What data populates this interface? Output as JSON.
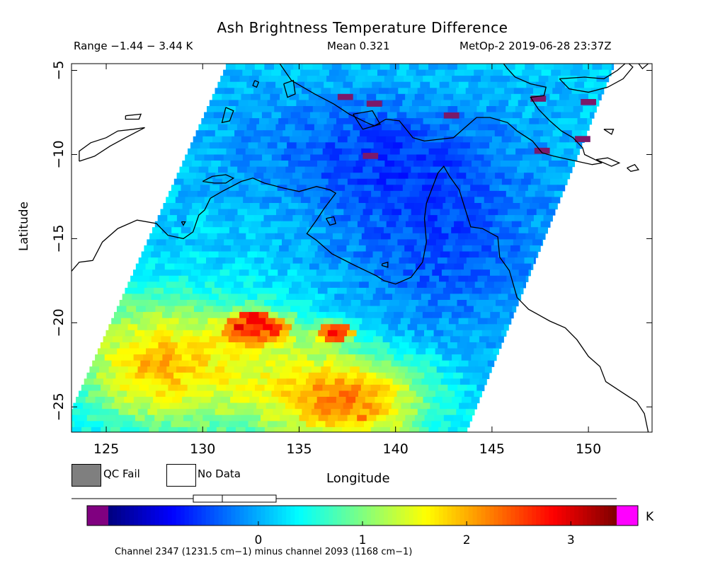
{
  "chart_data": {
    "type": "heatmap",
    "title": "Ash Brightness Temperature Difference",
    "header": {
      "range": "Range −1.44 − 3.44 K",
      "mean": "Mean 0.321",
      "satellite_time": "MetOp-2 2019-06-28 23:37Z"
    },
    "xlabel": "Longitude",
    "ylabel": "Latitude",
    "xlim": [
      123.2,
      153.3
    ],
    "ylim": [
      -26.5,
      -4.6
    ],
    "xticks": [
      125,
      130,
      135,
      140,
      145,
      150
    ],
    "yticks": [
      -5,
      -10,
      -15,
      -20,
      -25
    ],
    "ytick_labels": [
      "−5",
      "−10",
      "−15",
      "−20",
      "−25"
    ],
    "swath_lon_edges": {
      "top": [
        131.2,
        151.3
      ],
      "bottom": [
        122.6,
        143.6
      ]
    },
    "colorbar": {
      "min": -1.44,
      "max": 3.44,
      "ticks": [
        0,
        1,
        2,
        3
      ],
      "unit": "K",
      "under_color": "#800080",
      "over_color": "#ff00ff",
      "colors": [
        "#00007f",
        "#0000ff",
        "#0080ff",
        "#00ffff",
        "#80ff80",
        "#ffff00",
        "#ff8000",
        "#ff0000",
        "#7f0000"
      ]
    },
    "field": {
      "background_value": 0.15,
      "noise_amplitude": 0.45,
      "features": [
        {
          "lon": 142.0,
          "lat": -15.0,
          "value": -0.6,
          "spread_lon": 6.0,
          "spread_lat": 6.0
        },
        {
          "lon": 138.0,
          "lat": -9.5,
          "value": -0.5,
          "spread_lon": 7.0,
          "spread_lat": 3.5
        },
        {
          "lon": 130.0,
          "lat": -22.5,
          "value": 1.3,
          "spread_lon": 6.0,
          "spread_lat": 4.0
        },
        {
          "lon": 137.5,
          "lat": -24.5,
          "value": 1.9,
          "spread_lon": 4.0,
          "spread_lat": 2.8
        },
        {
          "lon": 132.5,
          "lat": -20.2,
          "value": 1.6,
          "spread_lon": 1.8,
          "spread_lat": 1.0
        },
        {
          "lon": 136.5,
          "lat": -20.4,
          "value": 1.6,
          "spread_lon": 0.8,
          "spread_lat": 0.7
        },
        {
          "lon": 126.5,
          "lat": -22.0,
          "value": 0.8,
          "spread_lon": 3.0,
          "spread_lat": 3.5
        }
      ],
      "hot_spots": [
        {
          "lon": 132.4,
          "lat": -19.6,
          "value": 3.3
        },
        {
          "lon": 133.3,
          "lat": -20.1,
          "value": 3.2
        },
        {
          "lon": 131.7,
          "lat": -20.1,
          "value": 3.1
        },
        {
          "lon": 136.6,
          "lat": -20.4,
          "value": 3.2
        },
        {
          "lon": 138.0,
          "lat": -25.4,
          "value": 2.6
        }
      ],
      "qc_fail_cells": [
        {
          "lon": 137.0,
          "lat": -6.4
        },
        {
          "lon": 138.5,
          "lat": -6.8
        },
        {
          "lon": 142.5,
          "lat": -7.5
        },
        {
          "lon": 147.0,
          "lat": -6.5
        },
        {
          "lon": 149.6,
          "lat": -6.7
        },
        {
          "lon": 149.3,
          "lat": -8.9
        },
        {
          "lon": 138.3,
          "lat": -9.9
        },
        {
          "lon": 147.2,
          "lat": -9.6
        }
      ]
    },
    "coastlines": [
      {
        "name": "australia-mainland",
        "points": [
          [
            118.0,
            -20.5
          ],
          [
            121.0,
            -19.5
          ],
          [
            122.2,
            -18.0
          ],
          [
            123.0,
            -17.2
          ],
          [
            123.6,
            -16.4
          ],
          [
            124.3,
            -16.3
          ],
          [
            124.8,
            -15.2
          ],
          [
            125.6,
            -14.4
          ],
          [
            126.6,
            -13.9
          ],
          [
            127.6,
            -14.1
          ],
          [
            128.2,
            -14.8
          ],
          [
            129.0,
            -15.0
          ],
          [
            129.5,
            -14.6
          ],
          [
            129.8,
            -13.6
          ],
          [
            130.1,
            -13.3
          ],
          [
            130.4,
            -12.6
          ],
          [
            131.0,
            -12.2
          ],
          [
            132.0,
            -11.6
          ],
          [
            132.6,
            -11.4
          ],
          [
            133.2,
            -11.7
          ],
          [
            134.2,
            -12.0
          ],
          [
            135.0,
            -12.2
          ],
          [
            135.9,
            -11.9
          ],
          [
            136.6,
            -12.1
          ],
          [
            136.9,
            -12.3
          ],
          [
            136.3,
            -13.2
          ],
          [
            135.9,
            -13.9
          ],
          [
            135.4,
            -14.7
          ],
          [
            135.9,
            -15.1
          ],
          [
            136.7,
            -15.9
          ],
          [
            137.9,
            -16.6
          ],
          [
            139.0,
            -17.2
          ],
          [
            139.4,
            -17.5
          ],
          [
            140.0,
            -17.7
          ],
          [
            140.8,
            -17.3
          ],
          [
            141.4,
            -16.4
          ],
          [
            141.6,
            -15.2
          ],
          [
            141.5,
            -13.8
          ],
          [
            141.6,
            -12.9
          ],
          [
            141.9,
            -12.0
          ],
          [
            142.2,
            -11.1
          ],
          [
            142.5,
            -10.7
          ],
          [
            142.8,
            -11.3
          ],
          [
            143.3,
            -12.1
          ],
          [
            143.6,
            -13.2
          ],
          [
            143.9,
            -14.3
          ],
          [
            144.5,
            -14.4
          ],
          [
            145.3,
            -14.9
          ],
          [
            145.4,
            -16.1
          ],
          [
            145.9,
            -16.9
          ],
          [
            146.3,
            -18.5
          ],
          [
            146.9,
            -19.2
          ],
          [
            148.0,
            -19.9
          ],
          [
            148.8,
            -20.3
          ],
          [
            149.4,
            -21.0
          ],
          [
            150.0,
            -22.0
          ],
          [
            150.6,
            -22.6
          ],
          [
            150.9,
            -23.5
          ],
          [
            151.7,
            -24.1
          ],
          [
            152.5,
            -24.7
          ],
          [
            152.9,
            -25.4
          ],
          [
            153.1,
            -26.5
          ]
        ]
      },
      {
        "name": "new-guinea-south",
        "points": [
          [
            131.0,
            -1.5
          ],
          [
            132.5,
            -3.0
          ],
          [
            133.6,
            -4.0
          ],
          [
            134.0,
            -4.6
          ],
          [
            134.6,
            -5.6
          ],
          [
            135.8,
            -6.4
          ],
          [
            136.8,
            -7.0
          ],
          [
            137.6,
            -7.6
          ],
          [
            138.5,
            -8.1
          ],
          [
            138.9,
            -8.3
          ],
          [
            139.5,
            -7.9
          ],
          [
            140.2,
            -8.0
          ],
          [
            140.9,
            -9.0
          ],
          [
            141.5,
            -9.2
          ],
          [
            142.2,
            -9.1
          ],
          [
            143.0,
            -9.0
          ],
          [
            143.6,
            -8.4
          ],
          [
            144.2,
            -7.8
          ],
          [
            144.9,
            -7.8
          ],
          [
            145.8,
            -8.1
          ],
          [
            146.3,
            -8.6
          ],
          [
            147.1,
            -9.2
          ],
          [
            147.6,
            -9.9
          ],
          [
            148.2,
            -10.1
          ],
          [
            149.0,
            -10.3
          ],
          [
            150.2,
            -10.6
          ],
          [
            150.7,
            -10.5
          ]
        ]
      },
      {
        "name": "new-guinea-north",
        "points": [
          [
            150.7,
            -10.5
          ],
          [
            149.8,
            -10.0
          ],
          [
            149.7,
            -9.6
          ],
          [
            149.2,
            -9.0
          ],
          [
            148.6,
            -8.6
          ],
          [
            148.0,
            -8.0
          ],
          [
            147.4,
            -7.3
          ],
          [
            147.0,
            -6.6
          ],
          [
            147.7,
            -6.5
          ],
          [
            147.8,
            -6.0
          ],
          [
            147.0,
            -5.8
          ],
          [
            146.2,
            -5.4
          ],
          [
            145.8,
            -4.9
          ],
          [
            145.2,
            -4.0
          ],
          [
            144.6,
            -3.7
          ],
          [
            143.8,
            -3.3
          ],
          [
            143.0,
            -3.1
          ],
          [
            142.0,
            -2.9
          ]
        ]
      },
      {
        "name": "timor",
        "points": [
          [
            123.6,
            -10.4
          ],
          [
            124.4,
            -10.1
          ],
          [
            125.2,
            -9.5
          ],
          [
            126.0,
            -9.0
          ],
          [
            127.0,
            -8.4
          ],
          [
            126.4,
            -8.5
          ],
          [
            125.6,
            -8.6
          ],
          [
            125.0,
            -9.0
          ],
          [
            124.2,
            -9.3
          ],
          [
            123.6,
            -9.8
          ],
          [
            123.6,
            -10.4
          ]
        ]
      },
      {
        "name": "melville-island",
        "points": [
          [
            130.0,
            -11.6
          ],
          [
            130.5,
            -11.3
          ],
          [
            131.2,
            -11.2
          ],
          [
            131.6,
            -11.4
          ],
          [
            131.2,
            -11.7
          ],
          [
            130.6,
            -11.7
          ],
          [
            130.0,
            -11.6
          ]
        ]
      },
      {
        "name": "groote-eylandt",
        "points": [
          [
            136.4,
            -13.8
          ],
          [
            136.8,
            -13.7
          ],
          [
            136.9,
            -14.1
          ],
          [
            136.6,
            -14.2
          ],
          [
            136.4,
            -13.8
          ]
        ]
      },
      {
        "name": "mornington-island",
        "points": [
          [
            139.3,
            -16.5
          ],
          [
            139.6,
            -16.4
          ],
          [
            139.6,
            -16.7
          ],
          [
            139.3,
            -16.6
          ],
          [
            139.3,
            -16.5
          ]
        ]
      },
      {
        "name": "tanimbar",
        "points": [
          [
            131.2,
            -7.2
          ],
          [
            131.6,
            -7.4
          ],
          [
            131.4,
            -8.0
          ],
          [
            131.0,
            -8.1
          ],
          [
            131.2,
            -7.2
          ]
        ]
      },
      {
        "name": "frederik-hendrik",
        "points": [
          [
            137.8,
            -7.6
          ],
          [
            138.8,
            -7.4
          ],
          [
            139.2,
            -8.2
          ],
          [
            138.3,
            -8.5
          ],
          [
            137.8,
            -7.6
          ]
        ]
      },
      {
        "name": "aru-islands",
        "points": [
          [
            134.2,
            -5.8
          ],
          [
            134.7,
            -5.6
          ],
          [
            134.8,
            -6.4
          ],
          [
            134.4,
            -6.6
          ],
          [
            134.2,
            -5.8
          ]
        ]
      },
      {
        "name": "kai-islands",
        "points": [
          [
            132.7,
            -5.6
          ],
          [
            132.9,
            -5.7
          ],
          [
            132.8,
            -6.0
          ],
          [
            132.6,
            -5.9
          ],
          [
            132.7,
            -5.6
          ]
        ]
      },
      {
        "name": "wetar",
        "points": [
          [
            126.0,
            -7.7
          ],
          [
            126.8,
            -7.6
          ],
          [
            126.7,
            -7.9
          ],
          [
            126.0,
            -7.9
          ],
          [
            126.0,
            -7.7
          ]
        ]
      },
      {
        "name": "louisiade",
        "points": [
          [
            150.4,
            -10.3
          ],
          [
            151.0,
            -10.2
          ],
          [
            151.6,
            -10.5
          ],
          [
            151.2,
            -10.7
          ],
          [
            150.4,
            -10.3
          ]
        ]
      },
      {
        "name": "trobriand",
        "points": [
          [
            150.8,
            -8.5
          ],
          [
            151.3,
            -8.5
          ],
          [
            151.2,
            -8.8
          ],
          [
            150.8,
            -8.5
          ]
        ]
      },
      {
        "name": "new-britain",
        "points": [
          [
            148.5,
            -5.5
          ],
          [
            149.8,
            -5.4
          ],
          [
            150.8,
            -5.5
          ],
          [
            151.5,
            -5.0
          ],
          [
            152.0,
            -4.5
          ],
          [
            152.3,
            -4.8
          ],
          [
            151.8,
            -5.5
          ],
          [
            151.0,
            -6.0
          ],
          [
            150.0,
            -6.3
          ],
          [
            149.0,
            -6.1
          ],
          [
            148.5,
            -5.5
          ]
        ]
      },
      {
        "name": "new-ireland",
        "points": [
          [
            150.8,
            -2.6
          ],
          [
            152.0,
            -3.4
          ],
          [
            152.7,
            -4.2
          ],
          [
            153.1,
            -4.6
          ],
          [
            152.8,
            -4.9
          ],
          [
            152.4,
            -4.3
          ]
        ]
      },
      {
        "name": "bougainville-fragment",
        "points": [
          [
            152.0,
            -10.8
          ],
          [
            152.4,
            -10.6
          ],
          [
            152.6,
            -10.9
          ],
          [
            152.2,
            -11.0
          ],
          [
            152.0,
            -10.8
          ]
        ]
      },
      {
        "name": "australia-west-islet",
        "points": [
          [
            128.9,
            -14.0
          ],
          [
            129.1,
            -14.0
          ],
          [
            129.0,
            -14.2
          ],
          [
            128.9,
            -14.0
          ]
        ]
      }
    ]
  },
  "legend": {
    "qc_fail": "QC Fail",
    "no_data": "No Data"
  },
  "footnote": "Channel 2347 (1231.5 cm−1) minus channel 2093 (1168 cm−1)",
  "colorbar_tick_labels": [
    "0",
    "1",
    "2",
    "3"
  ]
}
